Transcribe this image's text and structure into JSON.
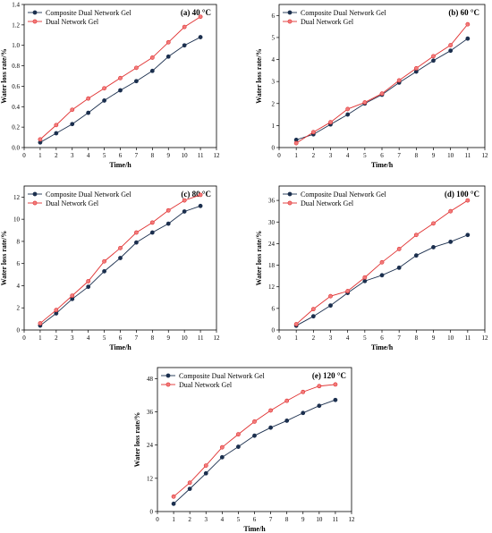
{
  "chart_data": [
    {
      "type": "line",
      "title": "(a) 40 °C",
      "xlabel": "Time/h",
      "ylabel": "Water loss rate/%",
      "xlim": [
        0,
        12
      ],
      "ylim": [
        0,
        1.4
      ],
      "xticks": [
        0,
        1,
        2,
        3,
        4,
        5,
        6,
        7,
        8,
        9,
        10,
        11,
        12
      ],
      "yticks": [
        0.0,
        0.2,
        0.4,
        0.6,
        0.8,
        1.0,
        1.2,
        1.4
      ],
      "ytick_labels": [
        "0.0",
        "0.2",
        "0.4",
        "0.6",
        "0.8",
        "1.0",
        "1.2",
        "1.4"
      ],
      "x": [
        1,
        2,
        3,
        4,
        5,
        6,
        7,
        8,
        9,
        10,
        11
      ],
      "legend_position": "top-left",
      "series": [
        {
          "name": "Composite Dual Network Gel",
          "color": "#1b2f4e",
          "values": [
            0.05,
            0.14,
            0.23,
            0.34,
            0.46,
            0.56,
            0.65,
            0.75,
            0.89,
            1.0,
            1.08
          ]
        },
        {
          "name": "Dual Network Gel",
          "color": "#e03030",
          "values": [
            0.08,
            0.22,
            0.37,
            0.48,
            0.58,
            0.68,
            0.78,
            0.88,
            1.03,
            1.18,
            1.28
          ]
        }
      ]
    },
    {
      "type": "line",
      "title": "(b) 60 °C",
      "xlabel": "Time/h",
      "ylabel": "Water loss rate/%",
      "xlim": [
        0,
        12
      ],
      "ylim": [
        0,
        6.5
      ],
      "xticks": [
        0,
        1,
        2,
        3,
        4,
        5,
        6,
        7,
        8,
        9,
        10,
        11,
        12
      ],
      "yticks": [
        0,
        1,
        2,
        3,
        4,
        5,
        6
      ],
      "ytick_labels": [
        "0",
        "1",
        "2",
        "3",
        "4",
        "5",
        "6"
      ],
      "x": [
        1,
        2,
        3,
        4,
        5,
        6,
        7,
        8,
        9,
        10,
        11
      ],
      "legend_position": "top-left",
      "series": [
        {
          "name": "Composite Dual Network Gel",
          "color": "#1b2f4e",
          "values": [
            0.35,
            0.6,
            1.05,
            1.5,
            2.0,
            2.4,
            2.95,
            3.45,
            3.95,
            4.4,
            4.95
          ]
        },
        {
          "name": "Dual Network Gel",
          "color": "#e03030",
          "values": [
            0.2,
            0.7,
            1.15,
            1.75,
            2.05,
            2.45,
            3.05,
            3.6,
            4.15,
            4.65,
            5.6
          ]
        }
      ]
    },
    {
      "type": "line",
      "title": "(c) 80 °C",
      "xlabel": "Time/h",
      "ylabel": "Water loss rate/%",
      "xlim": [
        0,
        12
      ],
      "ylim": [
        0,
        13
      ],
      "xticks": [
        0,
        1,
        2,
        3,
        4,
        5,
        6,
        7,
        8,
        9,
        10,
        11,
        12
      ],
      "yticks": [
        0,
        2,
        4,
        6,
        8,
        10,
        12
      ],
      "ytick_labels": [
        "0",
        "2",
        "4",
        "6",
        "8",
        "10",
        "12"
      ],
      "x": [
        1,
        2,
        3,
        4,
        5,
        6,
        7,
        8,
        9,
        10,
        11
      ],
      "legend_position": "top-left",
      "series": [
        {
          "name": "Composite Dual Network Gel",
          "color": "#1b2f4e",
          "values": [
            0.4,
            1.5,
            2.8,
            3.9,
            5.3,
            6.5,
            7.9,
            8.8,
            9.6,
            10.7,
            11.2
          ]
        },
        {
          "name": "Dual Network Gel",
          "color": "#e03030",
          "values": [
            0.6,
            1.8,
            3.1,
            4.4,
            6.2,
            7.4,
            8.8,
            9.7,
            10.8,
            11.7,
            12.2
          ]
        }
      ]
    },
    {
      "type": "line",
      "title": "(d) 100 °C",
      "xlabel": "Time/h",
      "ylabel": "Water loss rate/%",
      "xlim": [
        0,
        12
      ],
      "ylim": [
        0,
        40
      ],
      "xticks": [
        0,
        1,
        2,
        3,
        4,
        5,
        6,
        7,
        8,
        9,
        10,
        11,
        12
      ],
      "yticks": [
        0,
        6,
        12,
        18,
        24,
        30,
        36
      ],
      "ytick_labels": [
        "0",
        "6",
        "12",
        "18",
        "24",
        "30",
        "36"
      ],
      "x": [
        1,
        2,
        3,
        4,
        5,
        6,
        7,
        8,
        9,
        10,
        11
      ],
      "legend_position": "top-left",
      "series": [
        {
          "name": "Composite Dual Network Gel",
          "color": "#1b2f4e",
          "values": [
            1.2,
            3.8,
            6.8,
            10.3,
            13.6,
            15.2,
            17.3,
            20.7,
            23.0,
            24.5,
            26.4
          ]
        },
        {
          "name": "Dual Network Gel",
          "color": "#e03030",
          "values": [
            1.6,
            5.8,
            9.4,
            10.8,
            14.6,
            18.8,
            22.5,
            26.4,
            29.6,
            33.0,
            36.0
          ]
        }
      ]
    },
    {
      "type": "line",
      "title": "(e) 120 °C",
      "xlabel": "Time/h",
      "ylabel": "Water loss rate/%",
      "xlim": [
        0,
        12
      ],
      "ylim": [
        0,
        52
      ],
      "xticks": [
        0,
        1,
        2,
        3,
        4,
        5,
        6,
        7,
        8,
        9,
        10,
        11,
        12
      ],
      "yticks": [
        0,
        12,
        24,
        36,
        48
      ],
      "ytick_labels": [
        "0",
        "12",
        "24",
        "36",
        "48"
      ],
      "x": [
        1,
        2,
        3,
        4,
        5,
        6,
        7,
        8,
        9,
        10,
        11
      ],
      "legend_position": "top-left",
      "series": [
        {
          "name": "Composite Dual Network Gel",
          "color": "#1b2f4e",
          "values": [
            2.8,
            8.2,
            13.8,
            19.6,
            23.4,
            27.4,
            30.3,
            32.8,
            35.6,
            38.2,
            40.3
          ]
        },
        {
          "name": "Dual Network Gel",
          "color": "#e03030",
          "values": [
            5.4,
            10.4,
            16.6,
            23.2,
            27.9,
            32.5,
            36.5,
            40.0,
            43.2,
            45.3,
            45.9
          ]
        }
      ]
    }
  ]
}
